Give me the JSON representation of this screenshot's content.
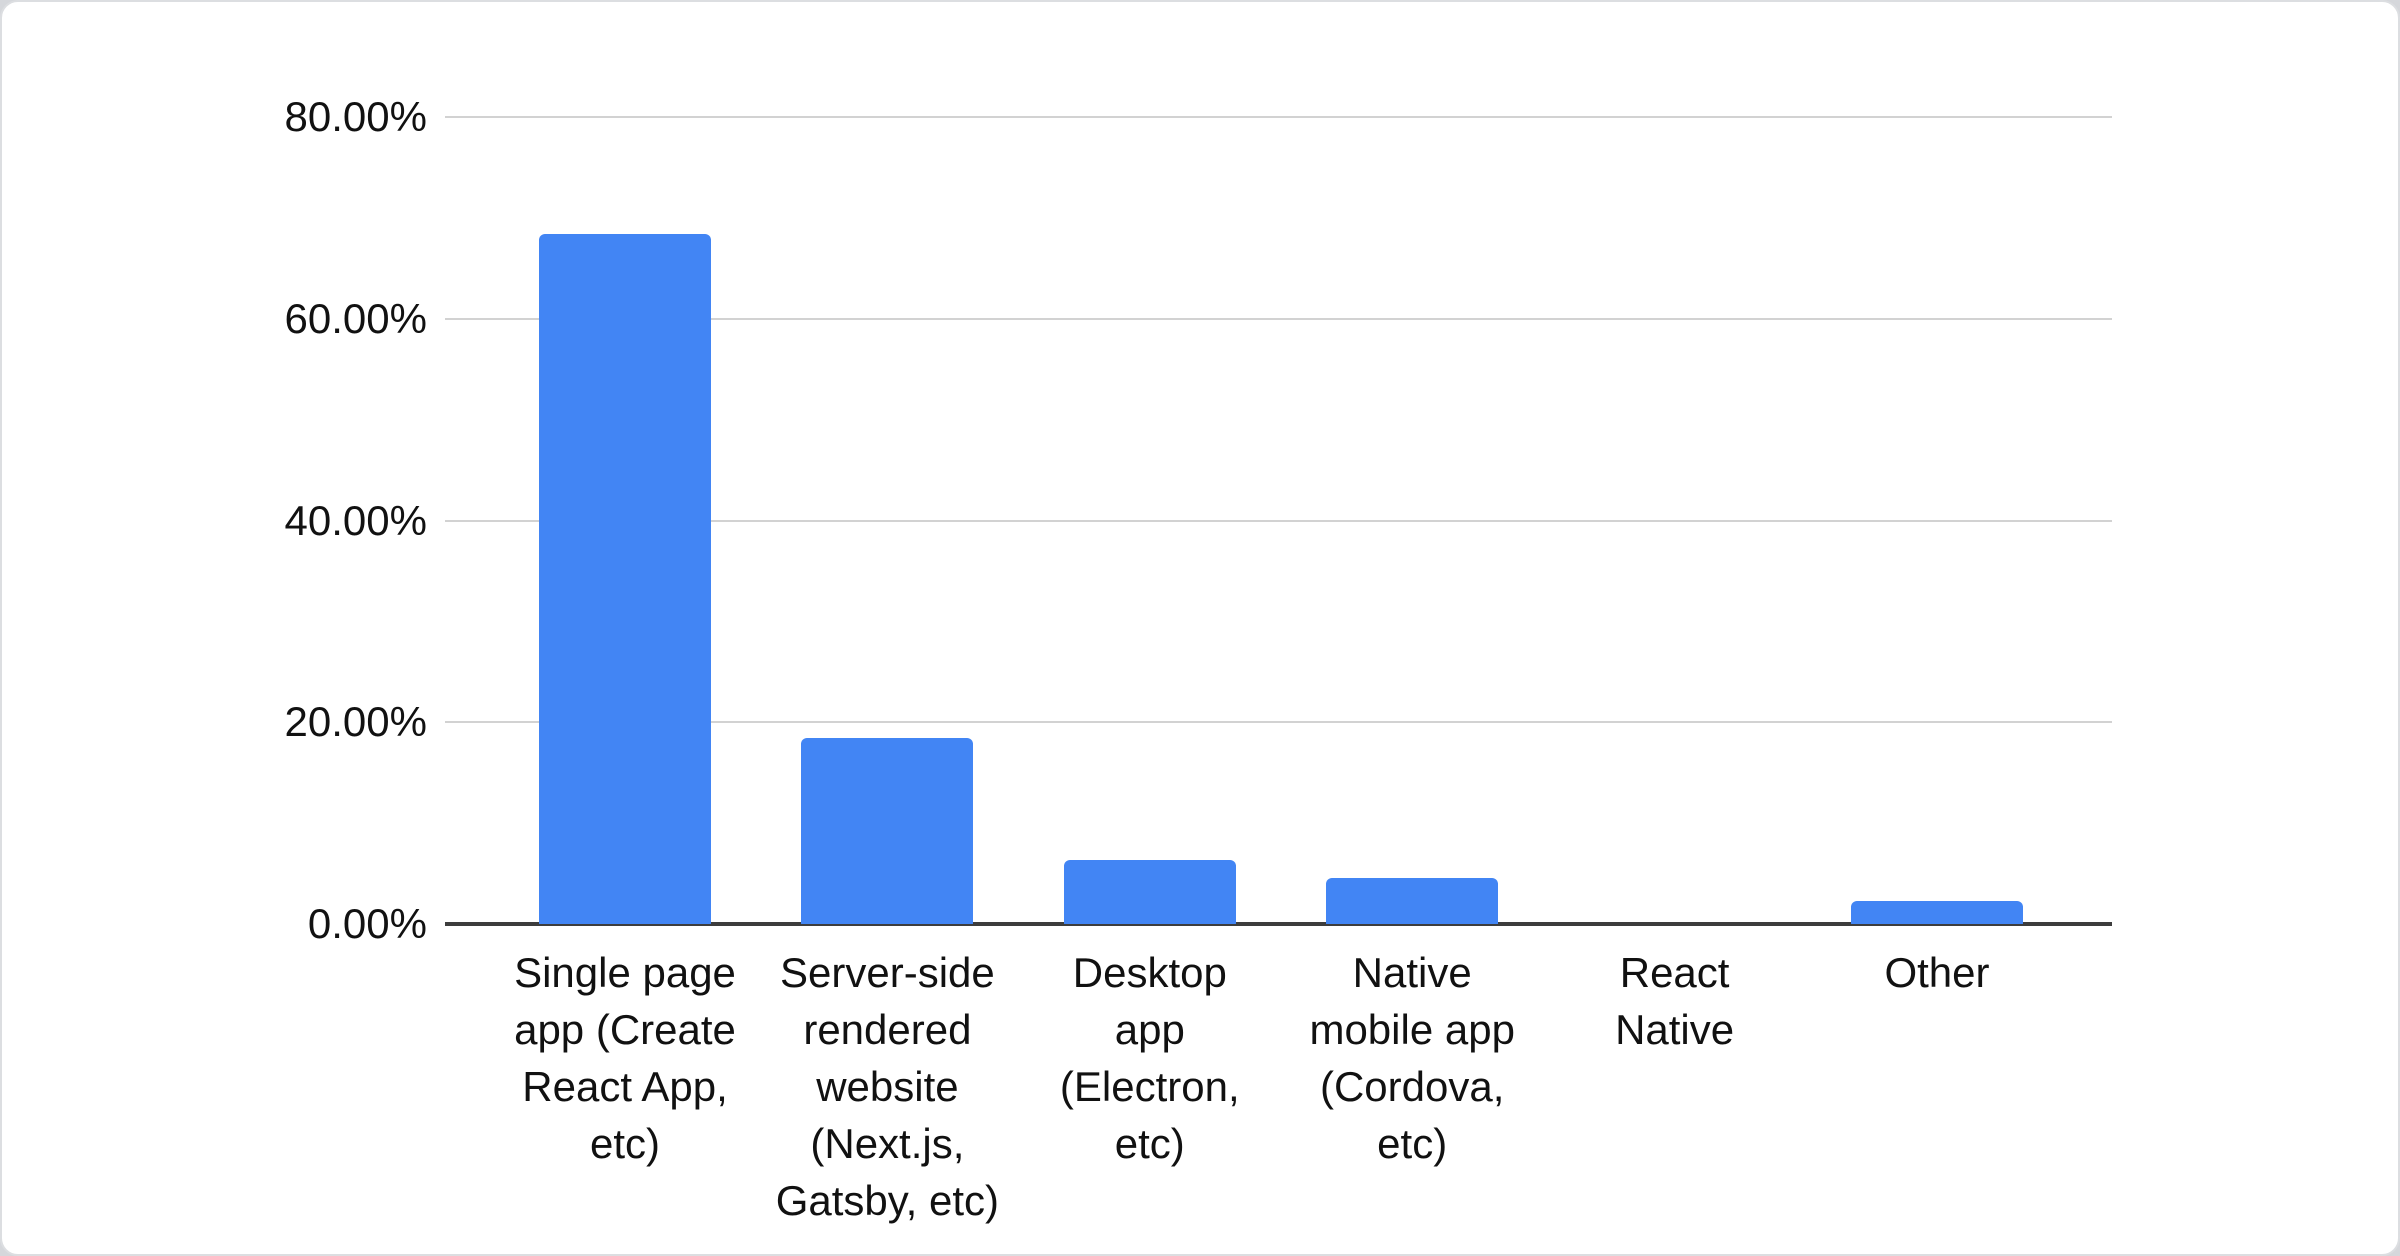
{
  "page": {
    "background_color": "#d5d7db",
    "card_background_color": "#ffffff",
    "card_border_color": "#dcdee1"
  },
  "chart_data": {
    "type": "bar",
    "title": "",
    "categories": [
      "Single page app (Create React App, etc)",
      "Server-side rendered website (Next.js, Gatsby, etc)",
      "Desktop app (Electron, etc)",
      "Native mobile app (Cordova, etc)",
      "React Native",
      "Other"
    ],
    "category_lines": [
      [
        "Single page",
        "app (Create",
        "React App,",
        "etc)"
      ],
      [
        "Server-side",
        "rendered",
        "website",
        "(Next.js,",
        "Gatsby, etc)"
      ],
      [
        "Desktop",
        "app",
        "(Electron,",
        "etc)"
      ],
      [
        "Native",
        "mobile app",
        "(Cordova,",
        "etc)"
      ],
      [
        "React",
        "Native"
      ],
      [
        "Other"
      ]
    ],
    "values": [
      68.4,
      18.4,
      6.3,
      4.6,
      0,
      2.3
    ],
    "value_unit": "%",
    "y_ticks": [
      "80.00%",
      "60.00%",
      "40.00%",
      "20.00%",
      "0.00%"
    ],
    "ylim": [
      0,
      80
    ],
    "xlabel": "",
    "ylabel": "",
    "legend": "none",
    "grid": true,
    "bar_color": "#4285f4",
    "gridline_color": "#d2d2d2",
    "axis_line_color": "#3d3d3d",
    "text_color": "#111111"
  }
}
